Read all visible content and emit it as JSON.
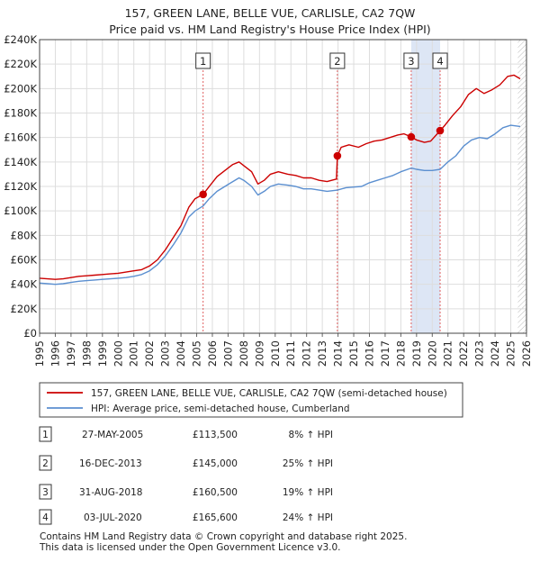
{
  "chart_data": {
    "type": "line",
    "title": "157, GREEN LANE, BELLE VUE, CARLISLE, CA2 7QW",
    "subtitle": "Price paid vs. HM Land Registry's House Price Index (HPI)",
    "xlabel": "",
    "ylabel": "",
    "xlim": [
      1995,
      2026
    ],
    "ylim": [
      0,
      240000
    ],
    "y_ticks": [
      {
        "value": 0,
        "label": "£0"
      },
      {
        "value": 20000,
        "label": "£20K"
      },
      {
        "value": 40000,
        "label": "£40K"
      },
      {
        "value": 60000,
        "label": "£60K"
      },
      {
        "value": 80000,
        "label": "£80K"
      },
      {
        "value": 100000,
        "label": "£100K"
      },
      {
        "value": 120000,
        "label": "£120K"
      },
      {
        "value": 140000,
        "label": "£140K"
      },
      {
        "value": 160000,
        "label": "£160K"
      },
      {
        "value": 180000,
        "label": "£180K"
      },
      {
        "value": 200000,
        "label": "£200K"
      },
      {
        "value": 220000,
        "label": "£220K"
      },
      {
        "value": 240000,
        "label": "£240K"
      }
    ],
    "x_ticks": [
      "1995",
      "1996",
      "1997",
      "1998",
      "1999",
      "2000",
      "2001",
      "2002",
      "2003",
      "2004",
      "2005",
      "2006",
      "2007",
      "2008",
      "2009",
      "2010",
      "2011",
      "2012",
      "2013",
      "2014",
      "2015",
      "2016",
      "2017",
      "2018",
      "2019",
      "2020",
      "2021",
      "2022",
      "2023",
      "2024",
      "2025",
      "2026"
    ],
    "grid": true,
    "series": [
      {
        "name": "157, GREEN LANE, BELLE VUE, CARLISLE, CA2 7QW (semi-detached house)",
        "color": "#cc0000",
        "points": [
          [
            1995.0,
            45000
          ],
          [
            1995.5,
            44500
          ],
          [
            1996.0,
            44000
          ],
          [
            1996.5,
            44500
          ],
          [
            1997.0,
            45500
          ],
          [
            1997.5,
            46500
          ],
          [
            1998.0,
            47000
          ],
          [
            1998.5,
            47500
          ],
          [
            1999.0,
            48000
          ],
          [
            1999.5,
            48500
          ],
          [
            2000.0,
            49000
          ],
          [
            2000.5,
            50000
          ],
          [
            2001.0,
            51000
          ],
          [
            2001.5,
            52000
          ],
          [
            2002.0,
            55000
          ],
          [
            2002.5,
            60000
          ],
          [
            2003.0,
            68000
          ],
          [
            2003.5,
            78000
          ],
          [
            2004.0,
            88000
          ],
          [
            2004.5,
            103000
          ],
          [
            2004.9,
            110000
          ],
          [
            2005.41,
            113500
          ],
          [
            2005.8,
            120000
          ],
          [
            2006.3,
            128000
          ],
          [
            2006.8,
            133000
          ],
          [
            2007.3,
            138000
          ],
          [
            2007.7,
            140000
          ],
          [
            2008.0,
            137000
          ],
          [
            2008.5,
            132000
          ],
          [
            2008.9,
            122000
          ],
          [
            2009.3,
            125000
          ],
          [
            2009.7,
            130000
          ],
          [
            2010.2,
            132000
          ],
          [
            2010.8,
            130000
          ],
          [
            2011.3,
            129000
          ],
          [
            2011.8,
            127000
          ],
          [
            2012.3,
            127000
          ],
          [
            2012.8,
            125000
          ],
          [
            2013.3,
            124000
          ],
          [
            2013.9,
            126000
          ],
          [
            2013.96,
            145000
          ],
          [
            2014.2,
            152000
          ],
          [
            2014.7,
            154000
          ],
          [
            2015.3,
            152000
          ],
          [
            2015.8,
            155000
          ],
          [
            2016.3,
            157000
          ],
          [
            2016.8,
            158000
          ],
          [
            2017.3,
            160000
          ],
          [
            2017.8,
            162000
          ],
          [
            2018.2,
            163000
          ],
          [
            2018.66,
            160500
          ],
          [
            2019.0,
            158000
          ],
          [
            2019.5,
            156000
          ],
          [
            2019.9,
            157000
          ],
          [
            2020.5,
            165600
          ],
          [
            2020.8,
            170000
          ],
          [
            2021.3,
            178000
          ],
          [
            2021.8,
            185000
          ],
          [
            2022.3,
            195000
          ],
          [
            2022.8,
            200000
          ],
          [
            2023.3,
            196000
          ],
          [
            2023.8,
            199000
          ],
          [
            2024.3,
            203000
          ],
          [
            2024.8,
            210000
          ],
          [
            2025.2,
            211000
          ],
          [
            2025.6,
            208000
          ]
        ]
      },
      {
        "name": "HPI: Average price, semi-detached house, Cumberland",
        "color": "#5b8fd0",
        "points": [
          [
            1995.0,
            41000
          ],
          [
            1995.5,
            40500
          ],
          [
            1996.0,
            40000
          ],
          [
            1996.5,
            40500
          ],
          [
            1997.0,
            41500
          ],
          [
            1997.5,
            42500
          ],
          [
            1998.0,
            43000
          ],
          [
            1998.5,
            43500
          ],
          [
            1999.0,
            44000
          ],
          [
            1999.5,
            44500
          ],
          [
            2000.0,
            45000
          ],
          [
            2000.5,
            45500
          ],
          [
            2001.0,
            46500
          ],
          [
            2001.5,
            48000
          ],
          [
            2002.0,
            51000
          ],
          [
            2002.5,
            56000
          ],
          [
            2003.0,
            63000
          ],
          [
            2003.5,
            72000
          ],
          [
            2004.0,
            82000
          ],
          [
            2004.5,
            95000
          ],
          [
            2004.9,
            100000
          ],
          [
            2005.41,
            104000
          ],
          [
            2005.8,
            110000
          ],
          [
            2006.3,
            116000
          ],
          [
            2006.8,
            120000
          ],
          [
            2007.3,
            124000
          ],
          [
            2007.7,
            127000
          ],
          [
            2008.0,
            125000
          ],
          [
            2008.5,
            120000
          ],
          [
            2008.9,
            113000
          ],
          [
            2009.3,
            116000
          ],
          [
            2009.7,
            120000
          ],
          [
            2010.2,
            122000
          ],
          [
            2010.8,
            121000
          ],
          [
            2011.3,
            120000
          ],
          [
            2011.8,
            118000
          ],
          [
            2012.3,
            118000
          ],
          [
            2012.8,
            117000
          ],
          [
            2013.3,
            116000
          ],
          [
            2013.96,
            117000
          ],
          [
            2014.5,
            119000
          ],
          [
            2015.0,
            119500
          ],
          [
            2015.5,
            120000
          ],
          [
            2016.0,
            123000
          ],
          [
            2016.5,
            125000
          ],
          [
            2017.0,
            127000
          ],
          [
            2017.5,
            129000
          ],
          [
            2018.0,
            132000
          ],
          [
            2018.66,
            135000
          ],
          [
            2019.0,
            134000
          ],
          [
            2019.5,
            133000
          ],
          [
            2020.0,
            133000
          ],
          [
            2020.5,
            134000
          ],
          [
            2021.0,
            140000
          ],
          [
            2021.5,
            145000
          ],
          [
            2022.0,
            153000
          ],
          [
            2022.5,
            158000
          ],
          [
            2023.0,
            160000
          ],
          [
            2023.5,
            159000
          ],
          [
            2024.0,
            163000
          ],
          [
            2024.5,
            168000
          ],
          [
            2025.0,
            170000
          ],
          [
            2025.6,
            169000
          ]
        ]
      }
    ],
    "sales": [
      {
        "id": "1",
        "date": "27-MAY-2005",
        "price": "£113,500",
        "hpi": "8% ↑ HPI",
        "x": 2005.41,
        "value": 113500
      },
      {
        "id": "2",
        "date": "16-DEC-2013",
        "price": "£145,000",
        "hpi": "25% ↑ HPI",
        "x": 2013.96,
        "value": 145000
      },
      {
        "id": "3",
        "date": "31-AUG-2018",
        "price": "£160,500",
        "hpi": "19% ↑ HPI",
        "x": 2018.66,
        "value": 160500
      },
      {
        "id": "4",
        "date": "03-JUL-2020",
        "price": "£165,600",
        "hpi": "24% ↑ HPI",
        "x": 2020.5,
        "value": 165600
      }
    ],
    "shaded_periods": [
      {
        "from": 2018.66,
        "to": 2020.5,
        "color": "#dde6f5"
      },
      {
        "from": 2025.45,
        "to": 2026.0,
        "color": "#e8e8e8",
        "hatched": true
      }
    ],
    "legend_placement": "below"
  },
  "footer": {
    "line1": "Contains HM Land Registry data © Crown copyright and database right 2025.",
    "line2": "This data is licensed under the Open Government Licence v3.0."
  }
}
